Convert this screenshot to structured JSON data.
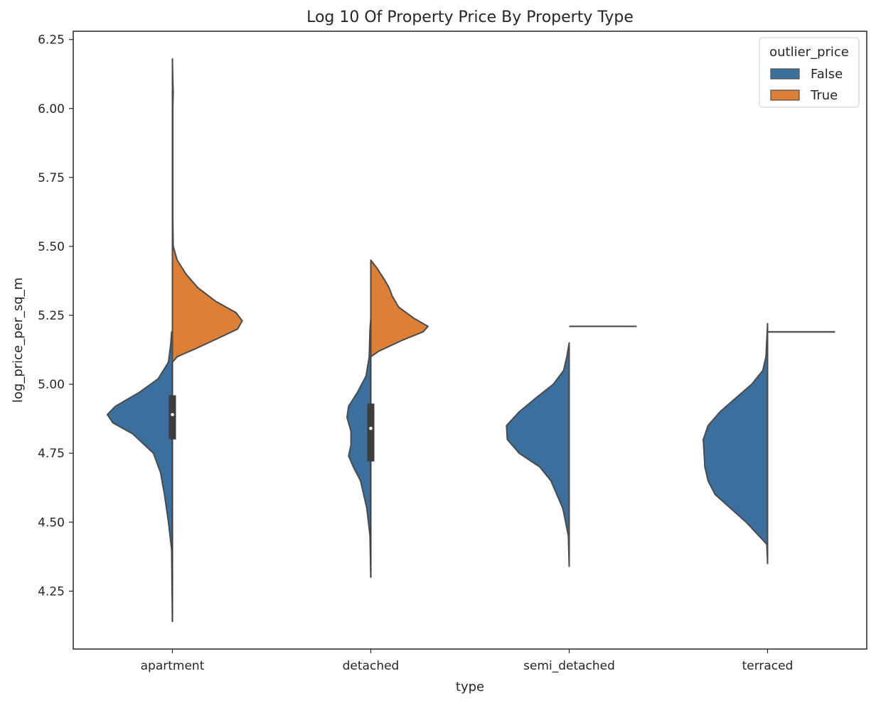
{
  "chart_data": {
    "type": "violin",
    "title": "Log 10 Of Property Price By Property Type",
    "xlabel": "type",
    "ylabel": "log_price_per_sq_m",
    "categories": [
      "apartment",
      "detached",
      "semi_detached",
      "terraced"
    ],
    "ylim": [
      4.04,
      6.28
    ],
    "yticks": [
      "4.25",
      "4.50",
      "4.75",
      "5.00",
      "5.25",
      "5.50",
      "5.75",
      "6.00",
      "6.25"
    ],
    "ytick_values": [
      4.25,
      4.5,
      4.75,
      5.0,
      5.25,
      5.5,
      5.75,
      6.0,
      6.25
    ],
    "split": true,
    "hue": "outlier_price",
    "legend": {
      "title": "outlier_price",
      "position": "top-right",
      "entries": [
        {
          "label": "False",
          "color": "#3a6f9e"
        },
        {
          "label": "True",
          "color": "#dd8036"
        }
      ]
    },
    "series": [
      {
        "name": "False",
        "color": "#3a6f9e",
        "side": "left",
        "violins": [
          {
            "category": "apartment",
            "profile": [
              [
                4.14,
                0.0
              ],
              [
                4.4,
                0.01
              ],
              [
                4.5,
                0.05
              ],
              [
                4.6,
                0.1
              ],
              [
                4.68,
                0.15
              ],
              [
                4.75,
                0.24
              ],
              [
                4.82,
                0.5
              ],
              [
                4.86,
                0.75
              ],
              [
                4.89,
                0.82
              ],
              [
                4.92,
                0.72
              ],
              [
                4.97,
                0.42
              ],
              [
                5.02,
                0.18
              ],
              [
                5.08,
                0.05
              ],
              [
                5.15,
                0.02
              ],
              [
                5.19,
                0.01
              ]
            ],
            "box": {
              "q1": 4.8,
              "median": 4.89,
              "q3": 4.96,
              "whisker_low": 4.14,
              "whisker_high": 5.18
            }
          },
          {
            "category": "detached",
            "profile": [
              [
                4.3,
                0.0
              ],
              [
                4.45,
                0.01
              ],
              [
                4.55,
                0.05
              ],
              [
                4.65,
                0.13
              ],
              [
                4.7,
                0.22
              ],
              [
                4.74,
                0.28
              ],
              [
                4.78,
                0.25
              ],
              [
                4.83,
                0.25
              ],
              [
                4.88,
                0.3
              ],
              [
                4.92,
                0.28
              ],
              [
                4.97,
                0.17
              ],
              [
                5.03,
                0.06
              ],
              [
                5.1,
                0.02
              ],
              [
                5.2,
                0.01
              ],
              [
                5.24,
                0.0
              ]
            ],
            "box": {
              "q1": 4.72,
              "median": 4.84,
              "q3": 4.93,
              "whisker_low": 4.3,
              "whisker_high": 5.24
            }
          },
          {
            "category": "semi_detached",
            "profile": [
              [
                4.34,
                0.0
              ],
              [
                4.45,
                0.01
              ],
              [
                4.55,
                0.08
              ],
              [
                4.65,
                0.23
              ],
              [
                4.7,
                0.37
              ],
              [
                4.75,
                0.63
              ],
              [
                4.8,
                0.78
              ],
              [
                4.85,
                0.79
              ],
              [
                4.9,
                0.63
              ],
              [
                4.95,
                0.42
              ],
              [
                5.0,
                0.2
              ],
              [
                5.05,
                0.07
              ],
              [
                5.1,
                0.03
              ],
              [
                5.15,
                0.0
              ]
            ],
            "box": null
          },
          {
            "category": "terraced",
            "profile": [
              [
                4.35,
                0.0
              ],
              [
                4.42,
                0.01
              ],
              [
                4.5,
                0.27
              ],
              [
                4.6,
                0.66
              ],
              [
                4.65,
                0.75
              ],
              [
                4.7,
                0.79
              ],
              [
                4.75,
                0.8
              ],
              [
                4.8,
                0.81
              ],
              [
                4.85,
                0.75
              ],
              [
                4.9,
                0.6
              ],
              [
                4.95,
                0.4
              ],
              [
                5.0,
                0.2
              ],
              [
                5.05,
                0.06
              ],
              [
                5.1,
                0.02
              ],
              [
                5.22,
                0.0
              ]
            ],
            "box": null
          }
        ]
      },
      {
        "name": "True",
        "color": "#dd8036",
        "side": "right",
        "violins": [
          {
            "category": "apartment",
            "profile": [
              [
                5.08,
                0.0
              ],
              [
                5.1,
                0.06
              ],
              [
                5.13,
                0.3
              ],
              [
                5.17,
                0.6
              ],
              [
                5.2,
                0.82
              ],
              [
                5.23,
                0.88
              ],
              [
                5.26,
                0.8
              ],
              [
                5.3,
                0.55
              ],
              [
                5.35,
                0.32
              ],
              [
                5.4,
                0.17
              ],
              [
                5.45,
                0.06
              ],
              [
                5.5,
                0.01
              ],
              [
                5.6,
                0.005
              ],
              [
                5.8,
                0.005
              ],
              [
                6.0,
                0.005
              ],
              [
                6.06,
                0.01
              ],
              [
                6.1,
                0.005
              ],
              [
                6.18,
                0.0
              ]
            ],
            "box": null
          },
          {
            "category": "detached",
            "profile": [
              [
                5.1,
                0.0
              ],
              [
                5.12,
                0.1
              ],
              [
                5.16,
                0.4
              ],
              [
                5.19,
                0.66
              ],
              [
                5.21,
                0.72
              ],
              [
                5.24,
                0.54
              ],
              [
                5.28,
                0.35
              ],
              [
                5.32,
                0.27
              ],
              [
                5.35,
                0.23
              ],
              [
                5.38,
                0.17
              ],
              [
                5.42,
                0.08
              ],
              [
                5.45,
                0.0
              ]
            ],
            "box": null
          },
          {
            "category": "semi_detached",
            "profile": [
              [
                5.21,
                0.85
              ]
            ],
            "box": null
          },
          {
            "category": "terraced",
            "profile": [
              [
                5.19,
                0.85
              ]
            ],
            "box": null
          }
        ]
      }
    ],
    "grid": false
  }
}
